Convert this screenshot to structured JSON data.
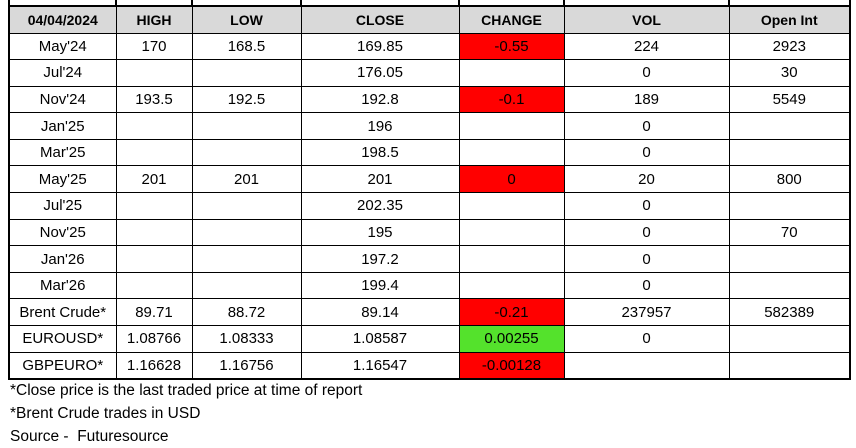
{
  "chart_data": {
    "type": "table",
    "date_header": "04/04/2024",
    "columns": [
      "HIGH",
      "LOW",
      "CLOSE",
      "CHANGE",
      "VOL",
      "Open Int"
    ],
    "rows": [
      {
        "label": "May'24",
        "high": "170",
        "low": "168.5",
        "close": "169.85",
        "change": "-0.55",
        "change_state": "negative",
        "vol": "224",
        "open_int": "2923"
      },
      {
        "label": "Jul'24",
        "high": "",
        "low": "",
        "close": "176.05",
        "change": "",
        "change_state": "",
        "vol": "0",
        "open_int": "30"
      },
      {
        "label": "Nov'24",
        "high": "193.5",
        "low": "192.5",
        "close": "192.8",
        "change": "-0.1",
        "change_state": "negative",
        "vol": "189",
        "open_int": "5549"
      },
      {
        "label": "Jan'25",
        "high": "",
        "low": "",
        "close": "196",
        "change": "",
        "change_state": "",
        "vol": "0",
        "open_int": ""
      },
      {
        "label": "Mar'25",
        "high": "",
        "low": "",
        "close": "198.5",
        "change": "",
        "change_state": "",
        "vol": "0",
        "open_int": ""
      },
      {
        "label": "May'25",
        "high": "201",
        "low": "201",
        "close": "201",
        "change": "0",
        "change_state": "negative",
        "vol": "20",
        "open_int": "800"
      },
      {
        "label": "Jul'25",
        "high": "",
        "low": "",
        "close": "202.35",
        "change": "",
        "change_state": "",
        "vol": "0",
        "open_int": ""
      },
      {
        "label": "Nov'25",
        "high": "",
        "low": "",
        "close": "195",
        "change": "",
        "change_state": "",
        "vol": "0",
        "open_int": "70"
      },
      {
        "label": "Jan'26",
        "high": "",
        "low": "",
        "close": "197.2",
        "change": "",
        "change_state": "",
        "vol": "0",
        "open_int": ""
      },
      {
        "label": "Mar'26",
        "high": "",
        "low": "",
        "close": "199.4",
        "change": "",
        "change_state": "",
        "vol": "0",
        "open_int": ""
      },
      {
        "label": "Brent Crude*",
        "high": "89.71",
        "low": "88.72",
        "close": "89.14",
        "change": "-0.21",
        "change_state": "negative",
        "vol": "237957",
        "open_int": "582389"
      },
      {
        "label": "EUROUSD*",
        "high": "1.08766",
        "low": "1.08333",
        "close": "1.08587",
        "change": "0.00255",
        "change_state": "positive",
        "vol": "0",
        "open_int": ""
      },
      {
        "label": "GBPEURO*",
        "high": "1.16628",
        "low": "1.16756",
        "close": "1.16547",
        "change": "-0.00128",
        "change_state": "negative",
        "vol": "",
        "open_int": ""
      }
    ]
  },
  "footnotes": [
    "*Close price is the last traded price at time of report",
    "*Brent Crude trades in USD",
    "Source -  Futuresource"
  ],
  "colors": {
    "negative_bg": "#ff0000",
    "positive_bg": "#54e22c",
    "header_bg": "#d9d9d9",
    "border": "#000000"
  }
}
